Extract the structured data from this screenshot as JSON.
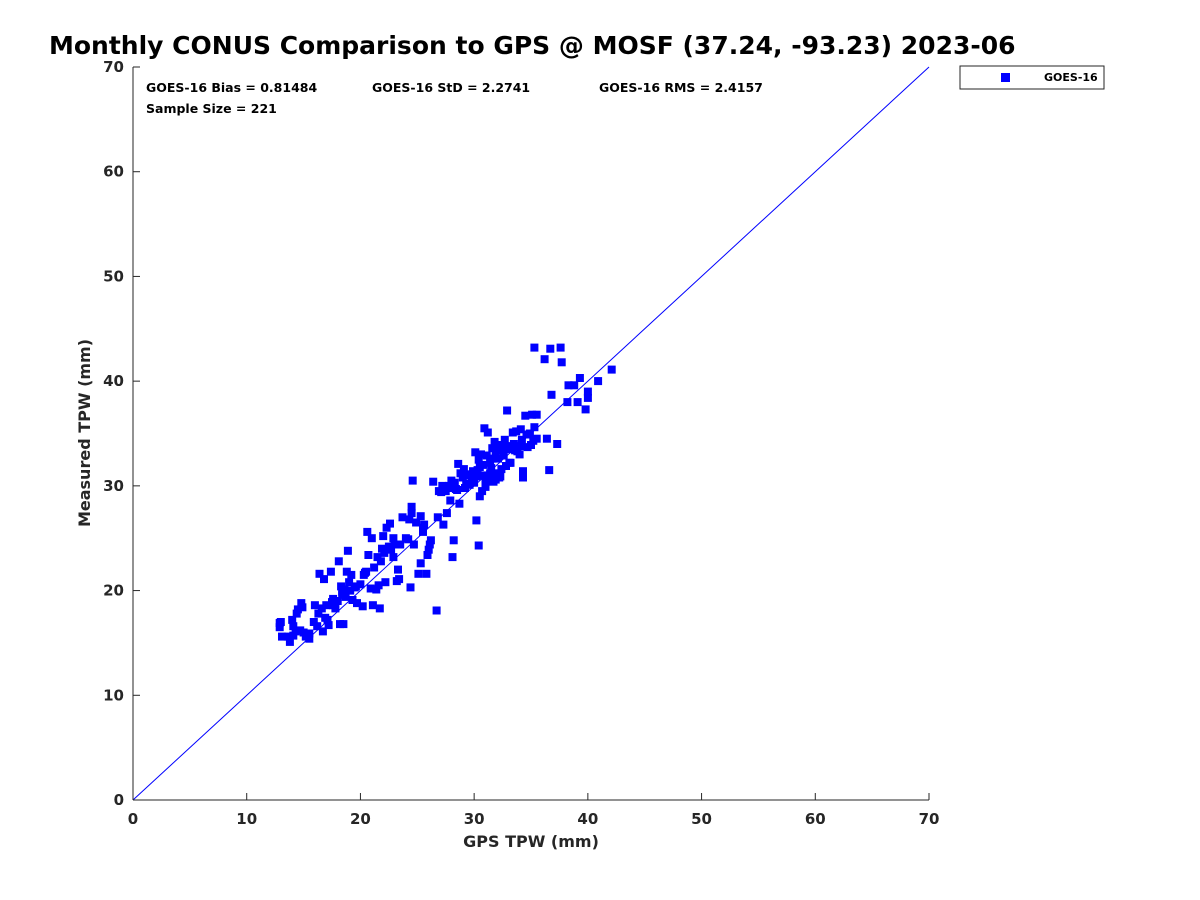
{
  "chart_data": {
    "type": "scatter",
    "title": "Monthly CONUS Comparison to GPS @ MOSF (37.24, -93.23) 2023-06",
    "xlabel": "GPS TPW (mm)",
    "ylabel": "Measured TPW (mm)",
    "xlim": [
      0,
      70
    ],
    "ylim": [
      0,
      70
    ],
    "xticks": [
      0,
      10,
      20,
      30,
      40,
      50,
      60,
      70
    ],
    "yticks": [
      0,
      10,
      20,
      30,
      40,
      50,
      60,
      70
    ],
    "grid": false,
    "legend_position": "outside-top-right",
    "marker": "square",
    "reference_line": {
      "x": [
        0,
        70
      ],
      "y": [
        0,
        70
      ],
      "color": "#0000ff"
    },
    "annotations": {
      "bias": "GOES-16 Bias = 0.81484",
      "std": "GOES-16 StD = 2.2741",
      "rms": "GOES-16 RMS = 2.4157",
      "sample_size": "Sample Size = 221"
    },
    "series": [
      {
        "name": "GOES-16",
        "color": "#0000ff",
        "points": [
          [
            12.9,
            16.9
          ],
          [
            12.9,
            16.5
          ],
          [
            13.1,
            15.6
          ],
          [
            13.6,
            15.6
          ],
          [
            13.8,
            15.1
          ],
          [
            14.0,
            17.2
          ],
          [
            14.1,
            15.7
          ],
          [
            14.3,
            16.1
          ],
          [
            14.4,
            17.8
          ],
          [
            14.5,
            18.2
          ],
          [
            14.7,
            16.2
          ],
          [
            14.8,
            18.8
          ],
          [
            14.9,
            18.4
          ],
          [
            15.0,
            16.0
          ],
          [
            15.2,
            15.6
          ],
          [
            15.5,
            15.9
          ],
          [
            15.5,
            15.4
          ],
          [
            15.9,
            17.0
          ],
          [
            16.0,
            18.6
          ],
          [
            16.2,
            16.6
          ],
          [
            16.3,
            17.8
          ],
          [
            16.4,
            21.6
          ],
          [
            16.6,
            18.3
          ],
          [
            16.7,
            16.1
          ],
          [
            16.8,
            21.1
          ],
          [
            17.0,
            18.6
          ],
          [
            17.1,
            17.2
          ],
          [
            17.2,
            16.7
          ],
          [
            17.4,
            21.8
          ],
          [
            17.5,
            18.9
          ],
          [
            17.6,
            19.2
          ],
          [
            17.8,
            18.3
          ],
          [
            18.0,
            19.0
          ],
          [
            18.1,
            22.8
          ],
          [
            18.2,
            16.8
          ],
          [
            18.3,
            20.4
          ],
          [
            18.4,
            19.6
          ],
          [
            18.5,
            16.8
          ],
          [
            18.6,
            20.1
          ],
          [
            18.7,
            19.4
          ],
          [
            18.8,
            21.8
          ],
          [
            18.9,
            23.8
          ],
          [
            19.0,
            20.8
          ],
          [
            19.1,
            20.0
          ],
          [
            19.2,
            21.5
          ],
          [
            19.3,
            19.1
          ],
          [
            19.5,
            20.3
          ],
          [
            19.7,
            18.8
          ],
          [
            20.0,
            20.6
          ],
          [
            20.2,
            18.5
          ],
          [
            20.3,
            21.5
          ],
          [
            20.5,
            21.8
          ],
          [
            20.6,
            25.6
          ],
          [
            20.7,
            23.4
          ],
          [
            20.9,
            20.2
          ],
          [
            21.0,
            25.0
          ],
          [
            21.1,
            18.6
          ],
          [
            21.2,
            22.2
          ],
          [
            21.4,
            20.1
          ],
          [
            21.5,
            23.2
          ],
          [
            21.6,
            20.5
          ],
          [
            21.7,
            18.3
          ],
          [
            21.9,
            24.0
          ],
          [
            22.0,
            25.2
          ],
          [
            22.1,
            23.6
          ],
          [
            22.2,
            20.8
          ],
          [
            22.3,
            26.0
          ],
          [
            22.5,
            24.2
          ],
          [
            22.6,
            26.4
          ],
          [
            22.7,
            23.9
          ],
          [
            22.9,
            25.0
          ],
          [
            23.0,
            24.4
          ],
          [
            23.2,
            20.9
          ],
          [
            23.3,
            22.0
          ],
          [
            23.4,
            21.1
          ],
          [
            23.5,
            24.4
          ],
          [
            23.7,
            27.0
          ],
          [
            24.0,
            25.0
          ],
          [
            24.3,
            26.8
          ],
          [
            24.4,
            20.3
          ],
          [
            24.5,
            28.0
          ],
          [
            24.5,
            27.4
          ],
          [
            24.6,
            30.5
          ],
          [
            24.7,
            24.4
          ],
          [
            24.9,
            26.5
          ],
          [
            25.1,
            21.6
          ],
          [
            25.3,
            22.6
          ],
          [
            25.3,
            27.1
          ],
          [
            25.5,
            25.6
          ],
          [
            25.6,
            26.3
          ],
          [
            25.8,
            21.6
          ],
          [
            25.9,
            23.4
          ],
          [
            26.0,
            23.9
          ],
          [
            26.1,
            24.4
          ],
          [
            26.2,
            24.8
          ],
          [
            26.4,
            30.4
          ],
          [
            26.7,
            18.1
          ],
          [
            26.9,
            29.5
          ],
          [
            27.1,
            29.4
          ],
          [
            27.2,
            30.0
          ],
          [
            27.3,
            26.3
          ],
          [
            27.5,
            29.5
          ],
          [
            27.6,
            27.4
          ],
          [
            27.8,
            30.0
          ],
          [
            27.9,
            29.8
          ],
          [
            28.0,
            30.5
          ],
          [
            28.1,
            23.2
          ],
          [
            28.2,
            24.8
          ],
          [
            28.3,
            30.3
          ],
          [
            28.5,
            29.6
          ],
          [
            28.6,
            32.1
          ],
          [
            28.7,
            28.3
          ],
          [
            28.8,
            31.2
          ],
          [
            29.0,
            30.8
          ],
          [
            29.1,
            31.6
          ],
          [
            29.2,
            29.8
          ],
          [
            29.4,
            31.0
          ],
          [
            29.6,
            31.1
          ],
          [
            29.8,
            30.6
          ],
          [
            30.0,
            30.3
          ],
          [
            30.1,
            33.2
          ],
          [
            30.2,
            26.7
          ],
          [
            30.3,
            31.5
          ],
          [
            30.4,
            24.3
          ],
          [
            30.4,
            32.5
          ],
          [
            30.5,
            29.0
          ],
          [
            30.6,
            33.0
          ],
          [
            30.7,
            29.5
          ],
          [
            30.8,
            31.0
          ],
          [
            30.9,
            35.5
          ],
          [
            31.0,
            30.5
          ],
          [
            31.1,
            32.9
          ],
          [
            31.2,
            35.1
          ],
          [
            31.3,
            30.9
          ],
          [
            31.4,
            32.2
          ],
          [
            31.5,
            31.7
          ],
          [
            31.6,
            33.6
          ],
          [
            31.7,
            30.4
          ],
          [
            31.8,
            34.2
          ],
          [
            31.9,
            33.3
          ],
          [
            32.0,
            31.2
          ],
          [
            32.1,
            32.6
          ],
          [
            32.2,
            33.9
          ],
          [
            32.3,
            30.9
          ],
          [
            32.4,
            31.6
          ],
          [
            32.5,
            33.4
          ],
          [
            32.7,
            34.4
          ],
          [
            32.8,
            31.9
          ],
          [
            32.9,
            37.2
          ],
          [
            33.0,
            33.5
          ],
          [
            33.2,
            32.2
          ],
          [
            33.4,
            35.1
          ],
          [
            33.5,
            34.0
          ],
          [
            33.7,
            35.2
          ],
          [
            33.8,
            33.3
          ],
          [
            34.0,
            33.0
          ],
          [
            34.1,
            35.4
          ],
          [
            34.2,
            34.4
          ],
          [
            34.3,
            31.4
          ],
          [
            34.3,
            30.8
          ],
          [
            34.5,
            36.7
          ],
          [
            34.6,
            34.9
          ],
          [
            34.7,
            33.7
          ],
          [
            34.9,
            35.0
          ],
          [
            35.0,
            33.9
          ],
          [
            35.1,
            36.8
          ],
          [
            35.2,
            34.3
          ],
          [
            35.3,
            43.2
          ],
          [
            35.3,
            35.6
          ],
          [
            35.5,
            36.8
          ],
          [
            35.5,
            34.5
          ],
          [
            36.2,
            42.1
          ],
          [
            36.4,
            34.5
          ],
          [
            36.6,
            31.5
          ],
          [
            36.7,
            43.1
          ],
          [
            36.8,
            38.7
          ],
          [
            37.3,
            34.0
          ],
          [
            37.6,
            43.2
          ],
          [
            37.7,
            41.8
          ],
          [
            38.2,
            38.0
          ],
          [
            38.3,
            39.6
          ],
          [
            38.8,
            39.6
          ],
          [
            39.1,
            38.0
          ],
          [
            39.3,
            40.3
          ],
          [
            39.8,
            37.3
          ],
          [
            40.0,
            38.4
          ],
          [
            40.0,
            39.0
          ],
          [
            40.9,
            40.0
          ],
          [
            42.1,
            41.1
          ],
          [
            13.0,
            17.0
          ],
          [
            14.1,
            16.6
          ],
          [
            15.3,
            15.8
          ],
          [
            16.9,
            17.4
          ],
          [
            17.6,
            18.6
          ],
          [
            18.4,
            19.9
          ],
          [
            19.6,
            20.4
          ],
          [
            20.4,
            21.7
          ],
          [
            21.8,
            22.8
          ],
          [
            22.9,
            23.2
          ],
          [
            24.2,
            24.9
          ],
          [
            25.5,
            26.0
          ],
          [
            26.8,
            27.0
          ],
          [
            27.9,
            28.6
          ],
          [
            29.3,
            30.2
          ],
          [
            30.5,
            31.8
          ],
          [
            31.4,
            31.2
          ],
          [
            32.6,
            32.9
          ],
          [
            33.6,
            33.4
          ],
          [
            29.9,
            31.4
          ],
          [
            31.0,
            29.9
          ],
          [
            30.8,
            32.0
          ],
          [
            31.9,
            30.6
          ],
          [
            32.2,
            30.8
          ],
          [
            28.4,
            29.7
          ],
          [
            33.1,
            32.2
          ],
          [
            34.1,
            33.8
          ],
          [
            27.4,
            29.9
          ],
          [
            30.2,
            30.9
          ],
          [
            31.6,
            32.6
          ],
          [
            32.8,
            33.8
          ],
          [
            29.6,
            30.1
          ]
        ]
      }
    ]
  }
}
